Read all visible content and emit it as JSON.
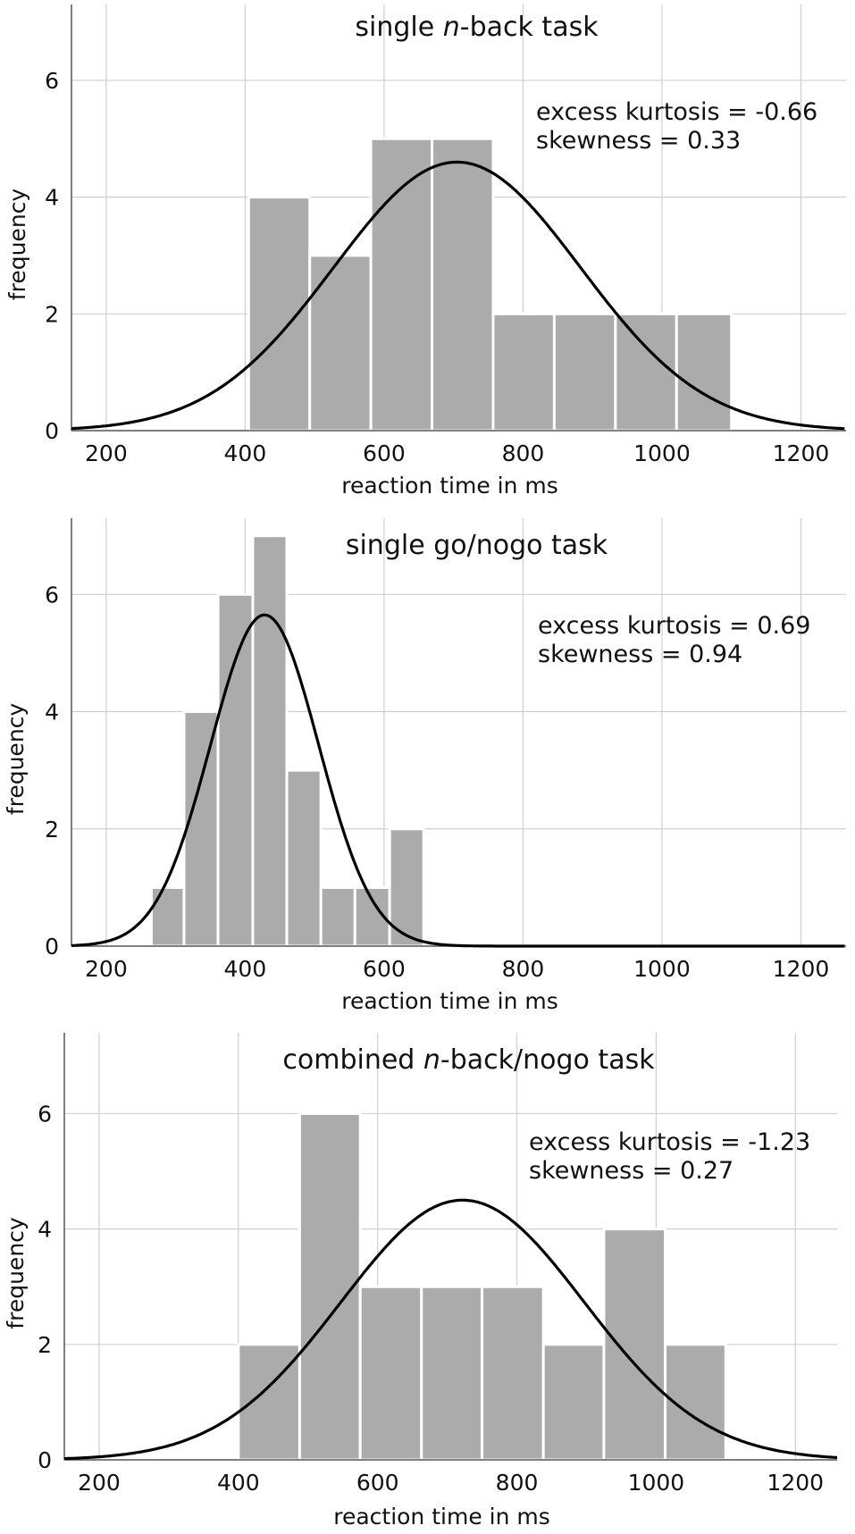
{
  "colors": {
    "bar": "#ababab",
    "bar_edge": "#ffffff",
    "grid": "#cfcfcf",
    "axis": "#555555",
    "curve": "#000000"
  },
  "chart_data": [
    {
      "type": "bar",
      "title": "single n-back task",
      "title_parts": [
        "single ",
        "n",
        "-back task"
      ],
      "xlabel": "reaction time in ms",
      "ylabel": "frequency",
      "xlim": [
        150,
        1265
      ],
      "ylim": [
        0,
        7.3
      ],
      "xticks": [
        200,
        400,
        600,
        800,
        1000,
        1200
      ],
      "yticks": [
        0,
        2,
        4,
        6
      ],
      "bins": [
        [
          405,
          493
        ],
        [
          493,
          581
        ],
        [
          581,
          669
        ],
        [
          669,
          757
        ],
        [
          757,
          845
        ],
        [
          845,
          933
        ],
        [
          933,
          1021
        ],
        [
          1021,
          1100
        ]
      ],
      "values": [
        4,
        3,
        5,
        5,
        2,
        2,
        2,
        2
      ],
      "normal_fit": {
        "mean": 705,
        "sd": 178,
        "peak": 4.6
      },
      "stats": [
        "excess kurtosis = -0.66",
        "skewness = 0.33"
      ]
    },
    {
      "type": "bar",
      "title": "single go/nogo task",
      "title_parts": [
        "single go/nogo task",
        "",
        ""
      ],
      "xlabel": "reaction time in ms",
      "ylabel": "frequency",
      "xlim": [
        150,
        1265
      ],
      "ylim": [
        0,
        7.3
      ],
      "xticks": [
        200,
        400,
        600,
        800,
        1000,
        1200
      ],
      "yticks": [
        0,
        2,
        4,
        6
      ],
      "bins": [
        [
          265,
          312
        ],
        [
          312,
          361
        ],
        [
          361,
          411
        ],
        [
          411,
          460
        ],
        [
          460,
          509
        ],
        [
          509,
          558
        ],
        [
          558,
          608
        ],
        [
          608,
          657
        ]
      ],
      "values": [
        1,
        4,
        6,
        7,
        3,
        1,
        1,
        2
      ],
      "normal_fit": {
        "mean": 428,
        "sd": 78,
        "peak": 5.65
      },
      "stats": [
        "excess kurtosis = 0.69",
        "skewness = 0.94"
      ]
    },
    {
      "type": "bar",
      "title": "combined n-back/nogo task",
      "title_parts": [
        "combined ",
        "n",
        "-back/nogo task"
      ],
      "xlabel": "reaction time in ms",
      "ylabel": "frequency",
      "xlim": [
        150,
        1260
      ],
      "ylim": [
        0,
        7.4
      ],
      "xticks": [
        200,
        400,
        600,
        800,
        1000,
        1200
      ],
      "yticks": [
        0,
        2,
        4,
        6
      ],
      "bins": [
        [
          400,
          488
        ],
        [
          488,
          575
        ],
        [
          575,
          663
        ],
        [
          663,
          750
        ],
        [
          750,
          838
        ],
        [
          838,
          925
        ],
        [
          925,
          1013
        ],
        [
          1013,
          1100
        ]
      ],
      "values": [
        2,
        6,
        3,
        3,
        3,
        2,
        4,
        2
      ],
      "normal_fit": {
        "mean": 722,
        "sd": 175,
        "peak": 4.5
      },
      "stats": [
        "excess kurtosis = -1.23",
        "skewness = 0.27"
      ]
    }
  ]
}
